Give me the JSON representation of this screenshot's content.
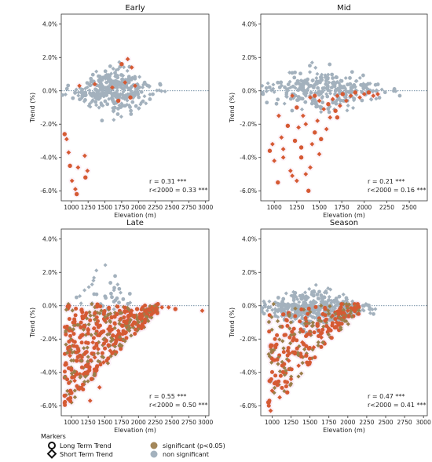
{
  "legend": {
    "markers_title": "Markers",
    "long_term": "Long Term Trend",
    "short_term": "Short Term Trend",
    "significant": "significant (p<0.05)",
    "non_significant": "non significant"
  },
  "colors": {
    "non_significant": "#a3b1bd",
    "significant_long": "#d55a33",
    "significant_short": "#9b7f4a",
    "significant_legend": "#a3875a",
    "halo": "#f3c9e3",
    "zero_line": "#4a6e8a"
  },
  "chart_data": [
    {
      "type": "scatter",
      "title": "Early",
      "xlabel": "Elevation (m)",
      "ylabel": "Trend (%)",
      "xlim": [
        850,
        3050
      ],
      "ylim": [
        -6.6,
        4.6
      ],
      "xticks": [
        "1000",
        "1250",
        "1500",
        "1750",
        "2000",
        "2250",
        "2500",
        "2750",
        "3000"
      ],
      "yticks": [
        "4.0%",
        "2.0%",
        "0.0%",
        "-2.0%",
        "-4.0%",
        "-6.0%"
      ],
      "stats": [
        "r = 0.31 ***",
        "r<2000 = 0.33 ***"
      ],
      "grid": false,
      "zero_line": true,
      "cloud": {
        "x_peak": 1650,
        "x_spread": 290,
        "y_center": 0.0,
        "y_spread": 0.75,
        "n": 330,
        "seed": 11
      },
      "significant_points": [
        [
          900,
          -2.6
        ],
        [
          930,
          -2.9
        ],
        [
          960,
          -3.7
        ],
        [
          980,
          -4.5
        ],
        [
          1010,
          -5.4
        ],
        [
          1060,
          -5.9
        ],
        [
          1080,
          -6.2
        ],
        [
          1100,
          -4.6
        ],
        [
          1200,
          -3.9
        ],
        [
          1210,
          -5.2
        ],
        [
          1240,
          -4.8
        ],
        [
          1350,
          0.4
        ],
        [
          1750,
          1.6
        ],
        [
          1800,
          0.5
        ],
        [
          1840,
          1.9
        ],
        [
          1880,
          -0.4
        ],
        [
          1900,
          1.4
        ],
        [
          1950,
          0.3
        ],
        [
          1700,
          -0.6
        ],
        [
          1610,
          0.2
        ],
        [
          1120,
          0.3
        ]
      ]
    },
    {
      "type": "scatter",
      "title": "Mid",
      "xlabel": "Elevation (m)",
      "ylabel": "Trend (%)",
      "xlim": [
        850,
        2700
      ],
      "ylim": [
        -6.6,
        4.6
      ],
      "xticks": [
        "1000",
        "1250",
        "1500",
        "1750",
        "2000",
        "2250",
        "2500"
      ],
      "yticks": [
        "4.0%",
        "2.0%",
        "0.0%",
        "-2.0%",
        "-4.0%",
        "-6.0%"
      ],
      "stats": [
        "r = 0.21 ***",
        "r<2000 = 0.16 ***"
      ],
      "grid": false,
      "zero_line": true,
      "cloud": {
        "x_peak": 1550,
        "x_spread": 330,
        "y_center": 0.0,
        "y_spread": 0.7,
        "n": 300,
        "seed": 23
      },
      "significant_points": [
        [
          950,
          -3.6
        ],
        [
          980,
          -3.2
        ],
        [
          1000,
          -4.2
        ],
        [
          1040,
          -5.5
        ],
        [
          1080,
          -2.8
        ],
        [
          1100,
          -3.5
        ],
        [
          1150,
          -2.1
        ],
        [
          1180,
          -4.8
        ],
        [
          1200,
          -5.1
        ],
        [
          1230,
          -3.0
        ],
        [
          1250,
          -5.4
        ],
        [
          1270,
          -2.2
        ],
        [
          1300,
          -4.0
        ],
        [
          1320,
          -1.5
        ],
        [
          1350,
          -5.0
        ],
        [
          1380,
          -6.0
        ],
        [
          1400,
          -4.6
        ],
        [
          1420,
          -3.2
        ],
        [
          1450,
          -2.5
        ],
        [
          1480,
          -1.8
        ],
        [
          1500,
          -3.8
        ],
        [
          1520,
          -2.9
        ],
        [
          1550,
          -1.1
        ],
        [
          1580,
          -2.3
        ],
        [
          1600,
          -0.8
        ],
        [
          1620,
          -1.6
        ],
        [
          1650,
          -0.5
        ],
        [
          1680,
          -1.2
        ],
        [
          1700,
          -0.3
        ],
        [
          1730,
          -0.9
        ],
        [
          1760,
          -0.2
        ],
        [
          1800,
          -0.6
        ],
        [
          1850,
          -0.3
        ],
        [
          1900,
          -0.1
        ],
        [
          1950,
          -0.4
        ],
        [
          2000,
          -0.2
        ],
        [
          2050,
          -0.1
        ],
        [
          2100,
          -0.3
        ],
        [
          2150,
          -0.2
        ],
        [
          1450,
          -0.3
        ],
        [
          1500,
          -0.6
        ],
        [
          1400,
          -0.4
        ],
        [
          1250,
          -1.0
        ],
        [
          1200,
          -0.3
        ],
        [
          1350,
          -2.0
        ],
        [
          1300,
          -3.4
        ],
        [
          1100,
          -4.0
        ],
        [
          1050,
          -1.5
        ],
        [
          1700,
          -1.6
        ]
      ]
    },
    {
      "type": "scatter",
      "title": "Late",
      "xlabel": "Elevation (m)",
      "ylabel": "Trend (%)",
      "xlim": [
        850,
        3050
      ],
      "ylim": [
        -6.6,
        4.6
      ],
      "xticks": [
        "1000",
        "1250",
        "1500",
        "1750",
        "2000",
        "2250",
        "2500",
        "2750",
        "3000"
      ],
      "yticks": [
        "4.0%",
        "2.0%",
        "0.0%",
        "-2.0%",
        "-4.0%",
        "-6.0%"
      ],
      "stats": [
        "r = 0.55 ***",
        "r<2000 = 0.50 ***"
      ],
      "grid": false,
      "zero_line": true,
      "cloud": {
        "x_peak": 1550,
        "x_spread": 200,
        "y_center": 0.4,
        "y_spread": 0.9,
        "n": 40,
        "seed": 37
      },
      "significant_points": [
        [
          900,
          -5.4
        ],
        [
          950,
          -5.6
        ],
        [
          980,
          -3.0
        ],
        [
          1000,
          -3.8
        ],
        [
          1020,
          -2.1
        ],
        [
          1050,
          -4.5
        ],
        [
          1080,
          -3.3
        ],
        [
          1100,
          -2.6
        ],
        [
          1120,
          -5.0
        ],
        [
          1150,
          -1.8
        ],
        [
          1180,
          -4.1
        ],
        [
          1200,
          -2.9
        ],
        [
          1220,
          -3.6
        ],
        [
          1250,
          -1.4
        ],
        [
          1280,
          -5.7
        ],
        [
          1300,
          -4.4
        ],
        [
          1320,
          -2.2
        ],
        [
          1350,
          -3.1
        ],
        [
          1380,
          -1.1
        ],
        [
          1400,
          -2.6
        ],
        [
          1420,
          -4.9
        ],
        [
          1450,
          -1.6
        ],
        [
          1480,
          -3.4
        ],
        [
          1500,
          -0.9
        ],
        [
          1520,
          -2.1
        ],
        [
          1550,
          -1.4
        ],
        [
          1580,
          -2.7
        ],
        [
          1600,
          -0.7
        ],
        [
          1620,
          -1.8
        ],
        [
          1650,
          -1.1
        ],
        [
          1680,
          -0.5
        ],
        [
          1700,
          -1.5
        ],
        [
          1730,
          -0.8
        ],
        [
          1760,
          -1.2
        ],
        [
          1800,
          -0.4
        ],
        [
          1830,
          -0.9
        ],
        [
          1860,
          -0.6
        ],
        [
          1900,
          -0.3
        ],
        [
          1940,
          -0.7
        ],
        [
          1980,
          -0.2
        ],
        [
          2020,
          -0.5
        ],
        [
          2060,
          -0.1
        ],
        [
          2100,
          -0.3
        ],
        [
          2150,
          -0.2
        ],
        [
          2200,
          -0.1
        ],
        [
          2250,
          -0.2
        ],
        [
          2350,
          -0.1
        ],
        [
          2450,
          -0.1
        ],
        [
          2550,
          -0.2
        ],
        [
          2950,
          -0.3
        ]
      ],
      "dense_significant": {
        "x_min": 900,
        "x_max": 2300,
        "n": 420,
        "seed": 51
      }
    },
    {
      "type": "scatter",
      "title": "Season",
      "xlabel": "Elevation (m)",
      "ylabel": "Trend (%)",
      "xlim": [
        850,
        3050
      ],
      "ylim": [
        -6.6,
        4.6
      ],
      "xticks": [
        "1000",
        "1250",
        "1500",
        "1750",
        "2000",
        "2250",
        "2500",
        "2750",
        "3000"
      ],
      "yticks": [
        "4.0%",
        "2.0%",
        "0.0%",
        "-2.0%",
        "-4.0%",
        "-6.0%"
      ],
      "stats": [
        "r = 0.47 ***",
        "r<2000 = 0.41 ***"
      ],
      "grid": false,
      "zero_line": true,
      "cloud": {
        "x_peak": 1550,
        "x_spread": 320,
        "y_center": -0.2,
        "y_spread": 0.55,
        "n": 420,
        "seed": 67
      },
      "significant_points": [
        [
          950,
          -5.8
        ],
        [
          980,
          -6.3
        ],
        [
          1000,
          -5.1
        ],
        [
          1050,
          -4.6
        ],
        [
          1100,
          -5.5
        ],
        [
          1150,
          -4.0
        ],
        [
          1200,
          -5.2
        ],
        [
          1220,
          -3.3
        ],
        [
          1250,
          -4.4
        ],
        [
          1300,
          -2.8
        ],
        [
          1350,
          -3.6
        ],
        [
          1400,
          -2.2
        ],
        [
          1450,
          -3.0
        ],
        [
          1500,
          -1.7
        ],
        [
          1550,
          -2.5
        ],
        [
          1600,
          -1.2
        ],
        [
          1650,
          -1.9
        ],
        [
          1700,
          -0.9
        ],
        [
          1750,
          -1.4
        ],
        [
          1800,
          -0.6
        ],
        [
          1850,
          -1.0
        ],
        [
          1900,
          -0.4
        ],
        [
          1950,
          -0.7
        ],
        [
          2000,
          -0.3
        ],
        [
          2100,
          -0.2
        ]
      ],
      "dense_significant": {
        "x_min": 950,
        "x_max": 2150,
        "n": 260,
        "seed": 79
      }
    }
  ]
}
